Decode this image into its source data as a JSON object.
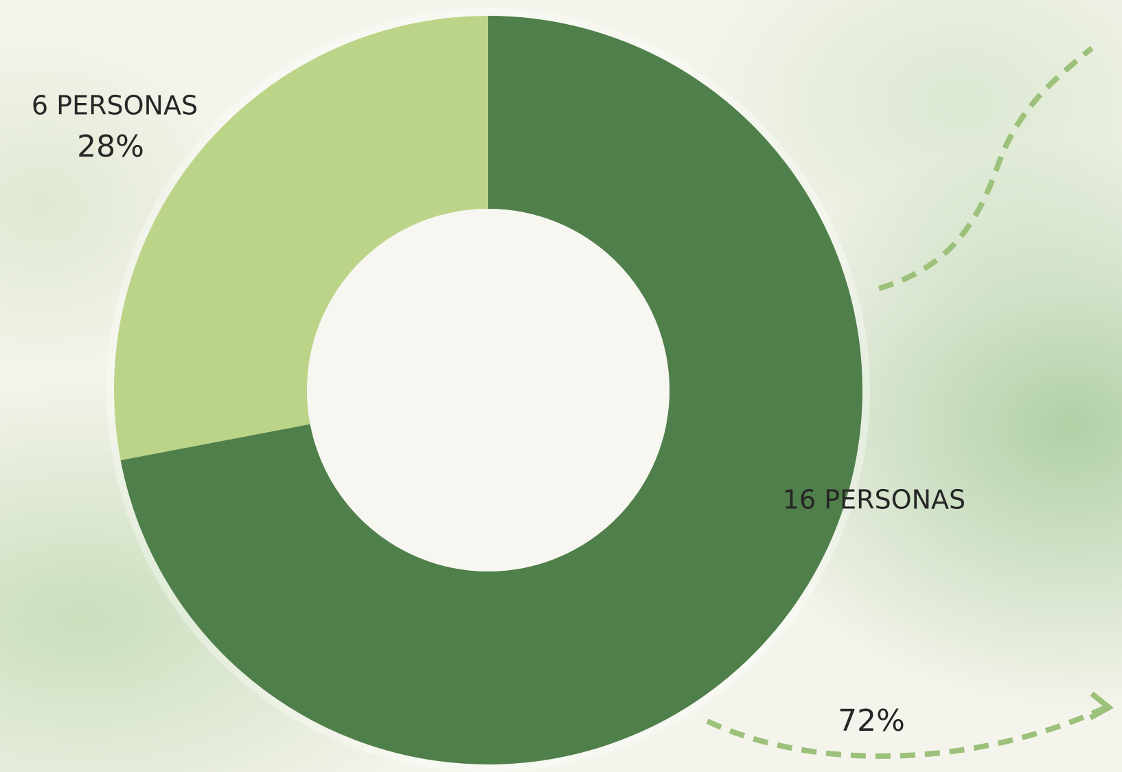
{
  "chart_data": {
    "type": "donut",
    "categories": [
      "16 PERSONAS",
      "6 PERSONAS"
    ],
    "values": [
      72,
      28
    ],
    "value_labels": [
      "72%",
      "28%"
    ],
    "colors": [
      "#4f7f4a",
      "#bcd488"
    ]
  }
}
